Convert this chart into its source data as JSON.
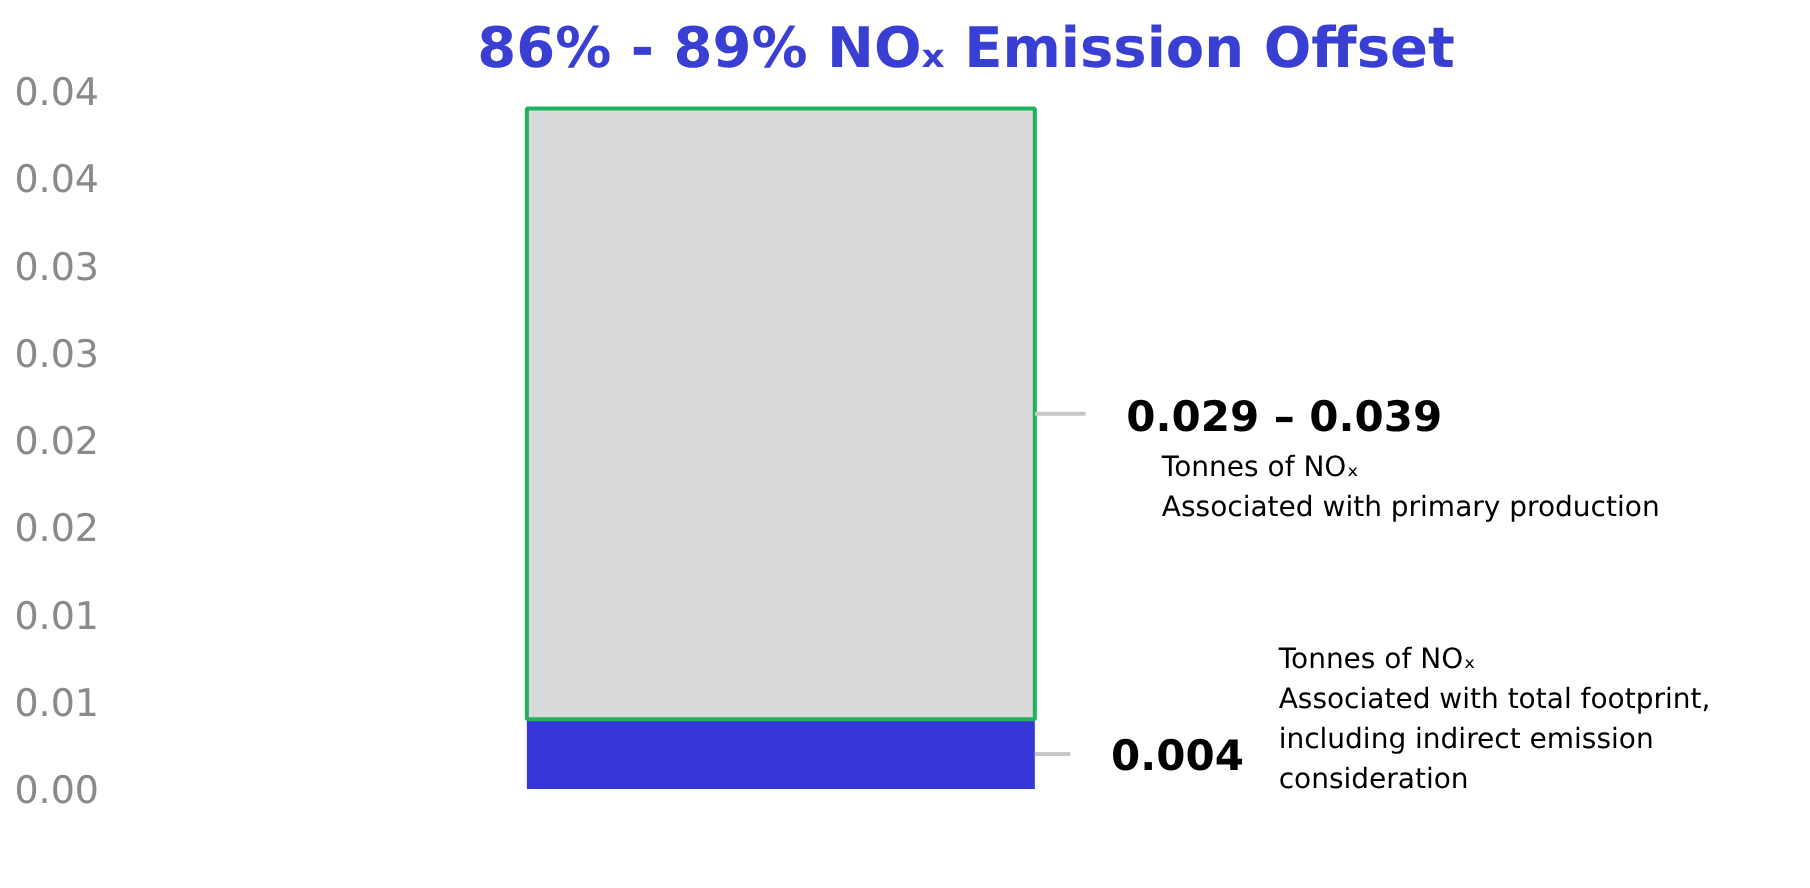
{
  "chart_data": {
    "type": "bar",
    "title": "86% - 89% NOₓ Emission Offset",
    "categories": [
      null
    ],
    "stacked": true,
    "series": [
      {
        "color": "#3538d6",
        "values": [
          0.004
        ],
        "value_labels": [
          "0.004"
        ]
      },
      {
        "color": "#d9d9d9",
        "values": [
          0.035
        ]
      }
    ],
    "ylim": [
      0,
      0.04
    ],
    "yticks": [
      {
        "value": 0,
        "label": "0.00"
      },
      {
        "value": 0.005,
        "label": "0.01"
      },
      {
        "value": 0.01,
        "label": "0.01"
      },
      {
        "value": 0.015,
        "label": "0.02"
      },
      {
        "value": 0.02,
        "label": "0.02"
      },
      {
        "value": 0.025,
        "label": "0.03"
      },
      {
        "value": 0.03,
        "label": "0.03"
      },
      {
        "value": 0.035,
        "label": "0.04"
      },
      {
        "value": 0.04,
        "label": "0.04"
      }
    ],
    "annotations": [
      "0.029 – 0.039",
      "Tonnes of NOₓ\nAssociated with primary production",
      "Tonnes of NOₓ\nAssociated with total footprint,\nincluding indirect emission\nconsideration"
    ],
    "grid": false
  }
}
